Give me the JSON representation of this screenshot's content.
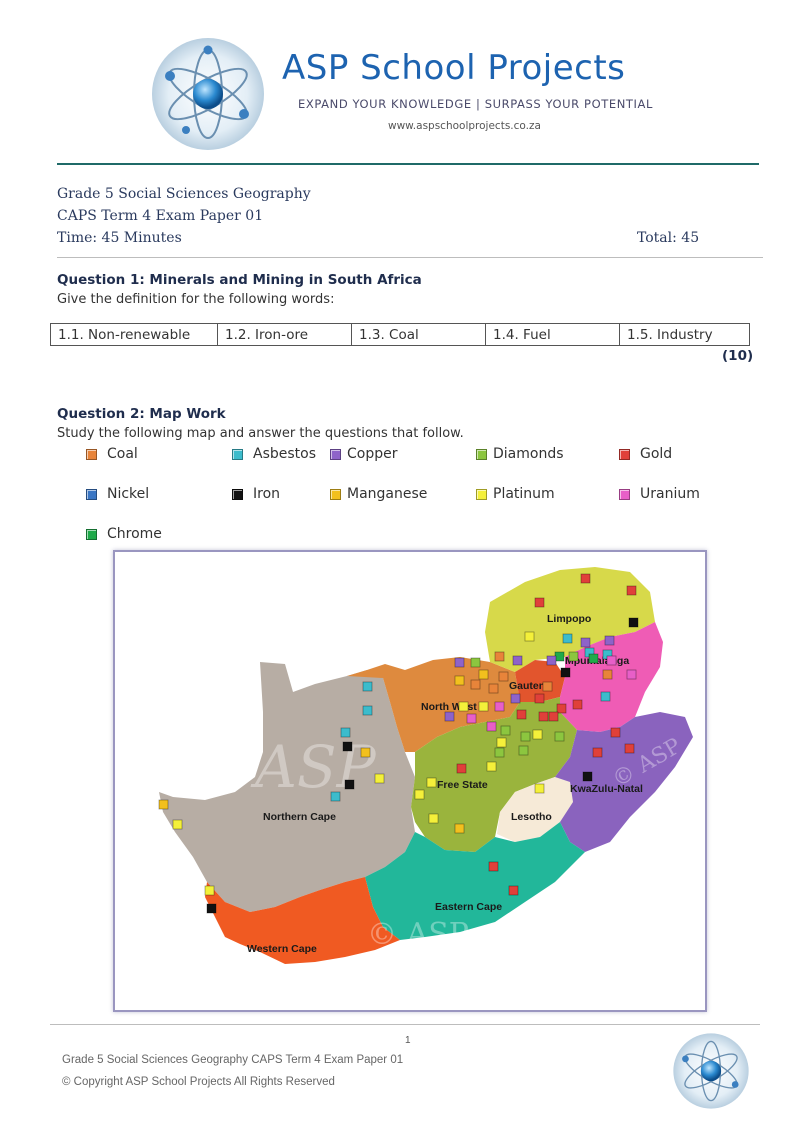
{
  "header": {
    "brand_title": "ASP School Projects",
    "tagline": "EXPAND YOUR KNOWLEDGE | SURPASS YOUR POTENTIAL",
    "url": "www.aspschoolprojects.co.za"
  },
  "exam": {
    "line1": "Grade 5 Social Sciences  Geography",
    "line2": "CAPS Term 4 Exam Paper 01",
    "time": "Time:  45 Minutes",
    "total": "Total:  45"
  },
  "question1": {
    "title": "Question 1:  Minerals and Mining in South Africa",
    "instruction": "Give the definition for the following words:",
    "terms": [
      "1.1.  Non-renewable",
      "1.2.  Iron-ore",
      "1.3.  Coal",
      "1.4.  Fuel",
      "1.5.  Industry"
    ],
    "marks": "(10)"
  },
  "question2": {
    "title": "Question 2:  Map Work",
    "instruction": "Study the following map and answer the questions that follow."
  },
  "legend": [
    {
      "label": "Coal",
      "color": "#e8843a"
    },
    {
      "label": "Asbestos",
      "color": "#3cbccc"
    },
    {
      "label": "Copper",
      "color": "#8e63c9"
    },
    {
      "label": "Diamonds",
      "color": "#8cc63f"
    },
    {
      "label": "Gold",
      "color": "#e0403a"
    },
    {
      "label": "Nickel",
      "color": "#3a76c4"
    },
    {
      "label": "Iron",
      "color": "#111111"
    },
    {
      "label": "Manganese",
      "color": "#f2c01e"
    },
    {
      "label": "Platinum",
      "color": "#f4f03a"
    },
    {
      "label": "Uranium",
      "color": "#e85fc8"
    },
    {
      "label": "Chrome",
      "color": "#1faa4a"
    }
  ],
  "map": {
    "provinces": [
      "Limpopo",
      "Mpumalanga",
      "North West",
      "Gauteng",
      "Free State",
      "KwaZulu-Natal",
      "Lesotho",
      "Northern Cape",
      "Eastern Cape",
      "Western Cape"
    ],
    "watermarks": [
      "ASP",
      "© ASP",
      "© ASP"
    ]
  },
  "footer": {
    "page_number": "1",
    "line1": "Grade 5 Social Sciences Geography CAPS Term 4 Exam Paper 01",
    "line2": "© Copyright ASP School Projects All Rights Reserved"
  }
}
